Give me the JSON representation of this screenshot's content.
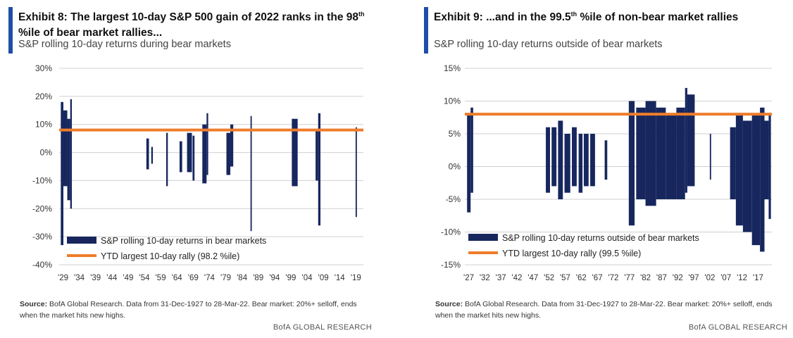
{
  "colors": {
    "bar": "#17275e",
    "line": "#ee7d2b",
    "grid": "#d0d0d0",
    "accent": "#1f4ea8"
  },
  "left": {
    "title_main": "Exhibit 8: The largest 10-day S&P 500 gain of 2022 ranks in the 98",
    "title_sup": "th",
    "title_tail": "%ile of bear market rallies...",
    "subtitle": "S&P rolling 10-day returns during bear markets",
    "source_label": "Source:",
    "source_text": "BofA Global Research. Data from 31-Dec-1927 to 28-Mar-22. Bear market: 20%+ selloff, ends when the market hits new highs.",
    "brand": "BofA GLOBAL RESEARCH"
  },
  "right": {
    "title_main": "Exhibit 9: ...and in the 99.5",
    "title_sup": "th",
    "title_tail": " %ile of non-bear market rallies",
    "subtitle": "S&P rolling 10-day returns outside of bear markets",
    "source_label": "Source:",
    "source_text": "BofA Global Research. Data from 31-Dec-1927 to 28-Mar-22. Bear market: 20%+ selloff, ends when the market hits new highs.",
    "brand": "BofA GLOBAL RESEARCH"
  },
  "chart_data": [
    {
      "type": "bar",
      "y_tick_labels": [
        "30%",
        "20%",
        "10%",
        "0%",
        "-10%",
        "-20%",
        "-30%",
        "-40%"
      ],
      "x_tick_labels": [
        "'29",
        "'34",
        "'39",
        "'44",
        "'49",
        "'54",
        "'59",
        "'64",
        "'69",
        "'74",
        "'79",
        "'84",
        "'89",
        "'94",
        "'99",
        "'04",
        "'09",
        "'14",
        "'19"
      ],
      "ylim": [
        -40,
        30
      ],
      "xlim": [
        1929,
        2022.5
      ],
      "x_tick_values": [
        1929,
        1934,
        1939,
        1944,
        1949,
        1954,
        1959,
        1964,
        1969,
        1974,
        1979,
        1984,
        1989,
        1994,
        1999,
        2004,
        2009,
        2014,
        2019
      ],
      "gridlines": true,
      "legend_position": "bottom-left",
      "series": [
        {
          "name": "S&P rolling 10-day returns in bear markets",
          "kind": "ranges",
          "segments": [
            {
              "x0": 1929.5,
              "x1": 1930.3,
              "max": 18,
              "min": -33
            },
            {
              "x0": 1930.3,
              "x1": 1931.5,
              "max": 15,
              "min": -12
            },
            {
              "x0": 1931.5,
              "x1": 1932.4,
              "max": 12,
              "min": -17
            },
            {
              "x0": 1932.4,
              "x1": 1932.9,
              "max": 19,
              "min": -20
            },
            {
              "x0": 1955.8,
              "x1": 1956.6,
              "max": 5,
              "min": -6
            },
            {
              "x0": 1957.3,
              "x1": 1957.8,
              "max": 2,
              "min": -4
            },
            {
              "x0": 1961.9,
              "x1": 1962.4,
              "max": 7,
              "min": -12
            },
            {
              "x0": 1966.0,
              "x1": 1966.8,
              "max": 4,
              "min": -7
            },
            {
              "x0": 1968.3,
              "x1": 1969.8,
              "max": 7,
              "min": -7
            },
            {
              "x0": 1970.0,
              "x1": 1970.6,
              "max": 6,
              "min": -10
            },
            {
              "x0": 1973.0,
              "x1": 1974.3,
              "max": 10,
              "min": -11
            },
            {
              "x0": 1974.3,
              "x1": 1974.8,
              "max": 14,
              "min": -8
            },
            {
              "x0": 1980.4,
              "x1": 1981.6,
              "max": 7,
              "min": -8
            },
            {
              "x0": 1981.6,
              "x1": 1982.5,
              "max": 10,
              "min": -5
            },
            {
              "x0": 1987.8,
              "x1": 1988.2,
              "max": 13,
              "min": -28
            },
            {
              "x0": 2000.5,
              "x1": 2002.3,
              "max": 12,
              "min": -12
            },
            {
              "x0": 2007.8,
              "x1": 2008.6,
              "max": 8,
              "min": -10
            },
            {
              "x0": 2008.6,
              "x1": 2009.3,
              "max": 14,
              "min": -26
            },
            {
              "x0": 2020.1,
              "x1": 2020.5,
              "max": 9,
              "min": -23
            }
          ]
        },
        {
          "name": "YTD largest 10-day rally (98.2 %ile)",
          "kind": "hline",
          "value": 8
        }
      ]
    },
    {
      "type": "bar",
      "y_tick_labels": [
        "15%",
        "10%",
        "5%",
        "0%",
        "-5%",
        "-10%",
        "-15%"
      ],
      "x_tick_labels": [
        "'27",
        "'32",
        "'37",
        "'42",
        "'47",
        "'52",
        "'57",
        "'62",
        "'67",
        "'72",
        "'77",
        "'82",
        "'87",
        "'92",
        "'97",
        "'02",
        "'07",
        "'12",
        "'17"
      ],
      "ylim": [
        -15,
        15
      ],
      "xlim": [
        1927,
        2022.5
      ],
      "x_tick_values": [
        1927,
        1932,
        1937,
        1942,
        1947,
        1952,
        1957,
        1962,
        1967,
        1972,
        1977,
        1982,
        1987,
        1992,
        1997,
        2002,
        2007,
        2012,
        2017
      ],
      "gridlines": true,
      "legend_position": "bottom-left",
      "series": [
        {
          "name": "S&P rolling 10-day returns outside of bear markets",
          "kind": "ranges",
          "segments": [
            {
              "x0": 1927.7,
              "x1": 1928.8,
              "max": 8,
              "min": -7
            },
            {
              "x0": 1928.8,
              "x1": 1929.6,
              "max": 9,
              "min": -4
            },
            {
              "x0": 1952.2,
              "x1": 1953.5,
              "max": 6,
              "min": -4
            },
            {
              "x0": 1954.0,
              "x1": 1955.5,
              "max": 6,
              "min": -3
            },
            {
              "x0": 1956.0,
              "x1": 1957.5,
              "max": 7,
              "min": -5
            },
            {
              "x0": 1958.0,
              "x1": 1959.8,
              "max": 5,
              "min": -4
            },
            {
              "x0": 1960.3,
              "x1": 1961.8,
              "max": 6,
              "min": -3
            },
            {
              "x0": 1962.4,
              "x1": 1963.6,
              "max": 5,
              "min": -4
            },
            {
              "x0": 1964.0,
              "x1": 1965.5,
              "max": 5,
              "min": -3
            },
            {
              "x0": 1966.0,
              "x1": 1967.5,
              "max": 5,
              "min": -3
            },
            {
              "x0": 1970.5,
              "x1": 1971.3,
              "max": 4,
              "min": -2
            },
            {
              "x0": 1978.0,
              "x1": 1979.8,
              "max": 10,
              "min": -9
            },
            {
              "x0": 1980.3,
              "x1": 1983.2,
              "max": 9,
              "min": -5
            },
            {
              "x0": 1983.2,
              "x1": 1986.5,
              "max": 10,
              "min": -6
            },
            {
              "x0": 1986.5,
              "x1": 1989.5,
              "max": 9,
              "min": -5
            },
            {
              "x0": 1989.5,
              "x1": 1992.8,
              "max": 8,
              "min": -5
            },
            {
              "x0": 1992.8,
              "x1": 1995.5,
              "max": 9,
              "min": -5
            },
            {
              "x0": 1995.5,
              "x1": 1996.2,
              "max": 12,
              "min": -4
            },
            {
              "x0": 1996.2,
              "x1": 1998.5,
              "max": 11,
              "min": -3
            },
            {
              "x0": 2003.2,
              "x1": 2003.6,
              "max": 5,
              "min": -2
            },
            {
              "x0": 2009.5,
              "x1": 2011.3,
              "max": 6,
              "min": -5
            },
            {
              "x0": 2011.3,
              "x1": 2013.5,
              "max": 8,
              "min": -9
            },
            {
              "x0": 2013.5,
              "x1": 2016.3,
              "max": 7,
              "min": -10
            },
            {
              "x0": 2016.3,
              "x1": 2018.8,
              "max": 8,
              "min": -12
            },
            {
              "x0": 2018.8,
              "x1": 2020.2,
              "max": 9,
              "min": -13
            },
            {
              "x0": 2020.2,
              "x1": 2021.5,
              "max": 7,
              "min": -5
            },
            {
              "x0": 2021.5,
              "x1": 2022.2,
              "max": 8,
              "min": -8
            }
          ]
        },
        {
          "name": "YTD largest 10-day rally (99.5 %ile)",
          "kind": "hline",
          "value": 8
        }
      ]
    }
  ]
}
